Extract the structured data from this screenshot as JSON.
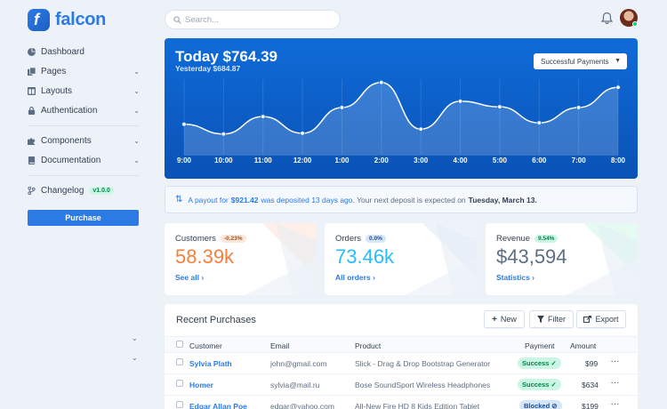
{
  "brand": {
    "name": "falcon",
    "logo_letter": "f"
  },
  "sidebar": {
    "items": [
      {
        "label": "Dashboard",
        "icon": "pie-chart-icon",
        "has_chevron": false
      },
      {
        "label": "Pages",
        "icon": "copy-icon",
        "has_chevron": true
      },
      {
        "label": "Layouts",
        "icon": "columns-icon",
        "has_chevron": true
      },
      {
        "label": "Authentication",
        "icon": "lock-icon",
        "has_chevron": true
      },
      {
        "label": "Components",
        "icon": "puzzle-icon",
        "has_chevron": true
      },
      {
        "label": "Documentation",
        "icon": "book-icon",
        "has_chevron": true
      },
      {
        "label": "Changelog",
        "icon": "code-branch-icon",
        "has_chevron": false,
        "badge": "v1.0.0"
      }
    ],
    "purchase_label": "Purchase"
  },
  "topbar": {
    "search_placeholder": "Search..."
  },
  "revenue": {
    "title": "Today $764.39",
    "subtitle": "Yesterday $684.87",
    "select_label": "Successful Payments",
    "chart_data": {
      "type": "area",
      "x": [
        "9:00",
        "10:00",
        "11:00",
        "12:00",
        "1:00",
        "2:00",
        "3:00",
        "4:00",
        "5:00",
        "6:00",
        "7:00",
        "8:00"
      ],
      "values": [
        45,
        31,
        56,
        32,
        69,
        105,
        38,
        78,
        70,
        47,
        69,
        98
      ],
      "ylim": [
        0,
        120
      ],
      "grid": true,
      "colors": {
        "line": "#ffffff",
        "area": "#ffffff"
      }
    }
  },
  "payout": {
    "prefix": "A payout for ",
    "amount": "$921.42",
    "middle": " was deposited 13 days ago",
    "suffix": ". Your next deposit is expected on ",
    "date": "Tuesday, March 13."
  },
  "stats": [
    {
      "title": "Customers",
      "badge": "-0.23%",
      "value": "58.39k",
      "link": "See all",
      "value_color": "#f5803e",
      "badge_bg": "#fde6d8",
      "badge_color": "#9d5228"
    },
    {
      "title": "Orders",
      "badge": "0.0%",
      "value": "73.46k",
      "link": "All orders",
      "value_color": "#27bcfd",
      "badge_bg": "#d5e5fa",
      "badge_color": "#1c4f93"
    },
    {
      "title": "Revenue",
      "badge": "9.54%",
      "value": "$43,594",
      "link": "Statistics",
      "value_color": "#5e6e82",
      "badge_bg": "#ccf6e4",
      "badge_color": "#00864e"
    }
  ],
  "purchases": {
    "title": "Recent Purchases",
    "buttons": {
      "new": "New",
      "filter": "Filter",
      "export": "Export"
    },
    "columns": {
      "customer": "Customer",
      "email": "Email",
      "product": "Product",
      "payment": "Payment",
      "amount": "Amount"
    },
    "rows": [
      {
        "customer": "Sylvia Plath",
        "email": "john@gmail.com",
        "product": "Slick - Drag & Drop Bootstrap Generator",
        "payment": "Success",
        "status": "success",
        "amount": "$99"
      },
      {
        "customer": "Homer",
        "email": "sylvia@mail.ru",
        "product": "Bose SoundSport Wireless Headphones",
        "payment": "Success",
        "status": "success",
        "amount": "$634"
      },
      {
        "customer": "Edgar Allan Poe",
        "email": "edgar@yahoo.com",
        "product": "All-New Fire HD 8 Kids Edition Tablet",
        "payment": "Blocked",
        "status": "blocked",
        "amount": "$199"
      }
    ]
  }
}
